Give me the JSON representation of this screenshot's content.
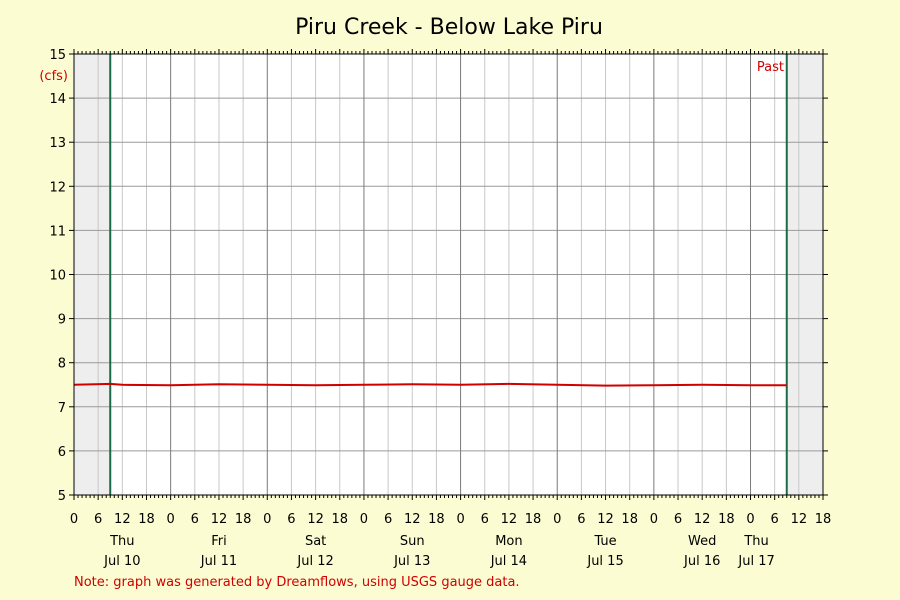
{
  "chart_data": {
    "type": "line",
    "title": "Piru Creek - Below Lake Piru",
    "unit_label": "(cfs)",
    "past_label": "Past",
    "note": "Note: graph was generated by Dreamflows, using USGS gauge data.",
    "ylim": [
      5,
      15
    ],
    "y_ticks": [
      5,
      6,
      7,
      8,
      9,
      10,
      11,
      12,
      13,
      14,
      15
    ],
    "xlim_hours": [
      0,
      186
    ],
    "hour_labels": [
      "0",
      "6",
      "12",
      "18"
    ],
    "days": [
      {
        "weekday": "Thu",
        "date": "Jul 10"
      },
      {
        "weekday": "Fri",
        "date": "Jul 11"
      },
      {
        "weekday": "Sat",
        "date": "Jul 12"
      },
      {
        "weekday": "Sun",
        "date": "Jul 13"
      },
      {
        "weekday": "Mon",
        "date": "Jul 14"
      },
      {
        "weekday": "Tue",
        "date": "Jul 15"
      },
      {
        "weekday": "Wed",
        "date": "Jul 16"
      },
      {
        "weekday": "Thu",
        "date": "Jul 17"
      }
    ],
    "window_start_hour": 9,
    "window_end_hour": 177,
    "series": [
      {
        "color": "#d00000",
        "x_hours": [
          0,
          9,
          12,
          24,
          36,
          48,
          60,
          72,
          84,
          96,
          108,
          120,
          132,
          144,
          156,
          168,
          177
        ],
        "values": [
          7.5,
          7.52,
          7.5,
          7.49,
          7.51,
          7.5,
          7.49,
          7.5,
          7.51,
          7.5,
          7.52,
          7.5,
          7.48,
          7.49,
          7.5,
          7.49,
          7.49
        ]
      }
    ],
    "grid": true,
    "colors": {
      "background": "#fcfcd2",
      "plot": "#ffffff",
      "outside_window": "#eeeeee",
      "window_line": "#1a6b4a",
      "series": "#d00000"
    }
  }
}
